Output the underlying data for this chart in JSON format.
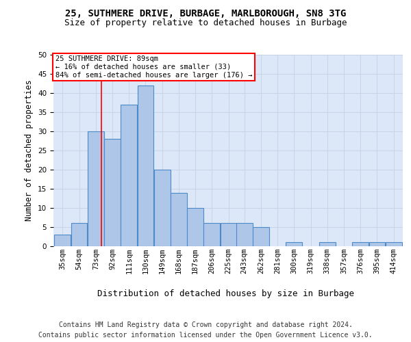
{
  "title1": "25, SUTHMERE DRIVE, BURBAGE, MARLBOROUGH, SN8 3TG",
  "title2": "Size of property relative to detached houses in Burbage",
  "xlabel": "Distribution of detached houses by size in Burbage",
  "ylabel": "Number of detached properties",
  "bins": [
    35,
    54,
    73,
    92,
    111,
    130,
    149,
    168,
    187,
    206,
    225,
    243,
    262,
    281,
    300,
    319,
    338,
    357,
    376,
    395,
    414
  ],
  "counts": [
    3,
    6,
    30,
    28,
    37,
    42,
    20,
    14,
    10,
    6,
    6,
    6,
    5,
    0,
    1,
    0,
    1,
    0,
    1,
    1,
    1
  ],
  "bar_color": "#aec6e8",
  "bar_edge_color": "#4d8ac9",
  "grid_color": "#c8d4e8",
  "background_color": "#dce8f8",
  "vline_x": 89,
  "vline_color": "#ff0000",
  "annotation_text": "25 SUTHMERE DRIVE: 89sqm\n← 16% of detached houses are smaller (33)\n84% of semi-detached houses are larger (176) →",
  "annotation_box_color": "#ffffff",
  "annotation_box_edge": "#ff0000",
  "ylim": [
    0,
    50
  ],
  "yticks": [
    0,
    5,
    10,
    15,
    20,
    25,
    30,
    35,
    40,
    45,
    50
  ],
  "footer1": "Contains HM Land Registry data © Crown copyright and database right 2024.",
  "footer2": "Contains public sector information licensed under the Open Government Licence v3.0.",
  "title1_fontsize": 10,
  "title2_fontsize": 9,
  "ylabel_fontsize": 8.5,
  "xlabel_fontsize": 9,
  "tick_fontsize": 7.5,
  "annotation_fontsize": 7.5,
  "footer_fontsize": 7
}
